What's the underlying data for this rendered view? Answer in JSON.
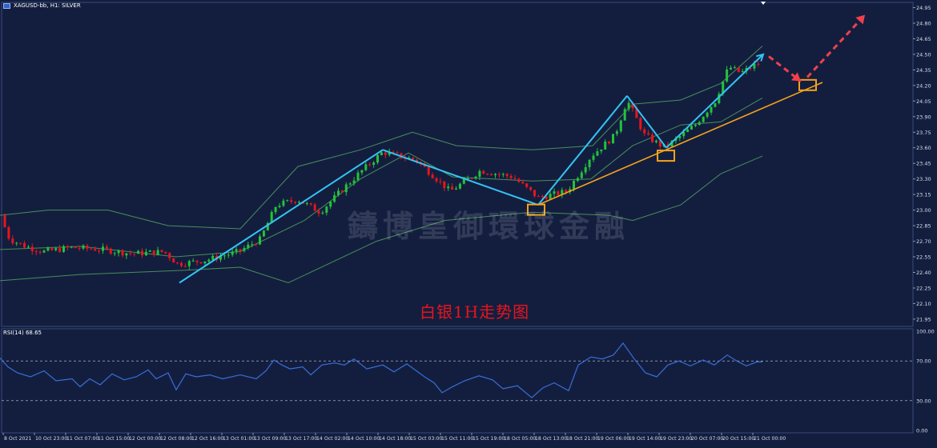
{
  "header": {
    "symbol_label": "XAGUSD-bb, H1: SILVER"
  },
  "rsi": {
    "label": "RSI(14) 68.65",
    "axis_labels": [
      "100.00",
      "70.00",
      "30.00",
      "0.00"
    ]
  },
  "annotation": {
    "title": "白银1H走势图"
  },
  "watermark": {
    "text": "鑄博皇御環球金融"
  },
  "colors": {
    "background": "#131e3f",
    "bull_candle": "#22c33a",
    "bear_candle": "#e8141c",
    "bands": "#4f9a5e",
    "trend_blue": "#33c4f2",
    "support_orange": "#f5a31a",
    "forecast_red": "#f0404a",
    "rsi_line": "#3a6ed6",
    "annotation_red": "#e8141c"
  },
  "chart_data": {
    "type": "candlestick",
    "symbol": "XAGUSD-bb",
    "timeframe": "H1",
    "y_axis_labels": [
      "24.95",
      "24.80",
      "24.65",
      "24.50",
      "24.35",
      "24.20",
      "24.05",
      "23.90",
      "23.75",
      "23.60",
      "23.45",
      "23.30",
      "23.15",
      "23.00",
      "22.85",
      "22.70",
      "22.55",
      "22.40",
      "22.25",
      "22.10",
      "21.95"
    ],
    "ylim": [
      21.88,
      25.0
    ],
    "x_axis_labels": [
      "8 Oct 2021",
      "10 Oct 23:00",
      "11 Oct 07:00",
      "11 Oct 15:00",
      "12 Oct 00:00",
      "12 Oct 08:00",
      "12 Oct 16:00",
      "13 Oct 01:00",
      "13 Oct 09:00",
      "13 Oct 17:00",
      "14 Oct 02:00",
      "14 Oct 10:00",
      "14 Oct 18:00",
      "15 Oct 03:00",
      "15 Oct 11:00",
      "15 Oct 19:00",
      "18 Oct 05:00",
      "18 Oct 13:00",
      "18 Oct 21:00",
      "19 Oct 06:00",
      "19 Oct 14:00",
      "19 Oct 23:00",
      "20 Oct 07:00",
      "20 Oct 15:00",
      "21 Oct 00:00"
    ],
    "price_path": [
      [
        0,
        22.95
      ],
      [
        12,
        22.72
      ],
      [
        32,
        22.65
      ],
      [
        55,
        22.6
      ],
      [
        90,
        22.64
      ],
      [
        128,
        22.62
      ],
      [
        165,
        22.58
      ],
      [
        205,
        22.6
      ],
      [
        222,
        22.48
      ],
      [
        258,
        22.52
      ],
      [
        298,
        22.6
      ],
      [
        325,
        22.72
      ],
      [
        345,
        23.05
      ],
      [
        372,
        23.1
      ],
      [
        400,
        22.98
      ],
      [
        425,
        23.18
      ],
      [
        452,
        23.38
      ],
      [
        478,
        23.56
      ],
      [
        520,
        23.48
      ],
      [
        548,
        23.28
      ],
      [
        562,
        23.18
      ],
      [
        600,
        23.38
      ],
      [
        640,
        23.32
      ],
      [
        672,
        23.12
      ],
      [
        708,
        23.18
      ],
      [
        738,
        23.52
      ],
      [
        768,
        23.72
      ],
      [
        783,
        24.06
      ],
      [
        805,
        23.72
      ],
      [
        830,
        23.6
      ],
      [
        868,
        23.82
      ],
      [
        893,
        24.05
      ],
      [
        910,
        24.38
      ],
      [
        925,
        24.32
      ],
      [
        948,
        24.42
      ]
    ],
    "bollinger": {
      "upper": [
        [
          0,
          22.95
        ],
        [
          60,
          23.0
        ],
        [
          135,
          23.0
        ],
        [
          210,
          22.85
        ],
        [
          300,
          22.82
        ],
        [
          372,
          23.42
        ],
        [
          450,
          23.58
        ],
        [
          515,
          23.75
        ],
        [
          570,
          23.62
        ],
        [
          665,
          23.58
        ],
        [
          740,
          23.62
        ],
        [
          790,
          24.02
        ],
        [
          850,
          24.06
        ],
        [
          900,
          24.22
        ],
        [
          952,
          24.58
        ]
      ],
      "middle": [
        [
          0,
          22.62
        ],
        [
          100,
          22.65
        ],
        [
          220,
          22.55
        ],
        [
          300,
          22.6
        ],
        [
          380,
          22.9
        ],
        [
          450,
          23.3
        ],
        [
          510,
          23.55
        ],
        [
          565,
          23.32
        ],
        [
          665,
          23.28
        ],
        [
          738,
          23.3
        ],
        [
          790,
          23.62
        ],
        [
          850,
          23.82
        ],
        [
          900,
          23.85
        ],
        [
          952,
          24.08
        ]
      ],
      "lower": [
        [
          0,
          22.32
        ],
        [
          100,
          22.38
        ],
        [
          230,
          22.42
        ],
        [
          300,
          22.45
        ],
        [
          360,
          22.3
        ],
        [
          470,
          22.7
        ],
        [
          555,
          22.9
        ],
        [
          665,
          22.98
        ],
        [
          760,
          22.95
        ],
        [
          790,
          22.9
        ],
        [
          850,
          23.05
        ],
        [
          900,
          23.35
        ],
        [
          952,
          23.52
        ]
      ]
    },
    "trendlines_blue": [
      [
        [
          224,
          22.3
        ],
        [
          478,
          23.58
        ]
      ],
      [
        [
          478,
          23.58
        ],
        [
          672,
          23.05
        ]
      ],
      [
        [
          672,
          23.05
        ],
        [
          783,
          24.1
        ]
      ],
      [
        [
          783,
          24.1
        ],
        [
          832,
          23.6
        ]
      ],
      [
        [
          832,
          23.6
        ],
        [
          953,
          24.5
        ]
      ]
    ],
    "support_line": [
      [
        672,
        23.05
      ],
      [
        1027,
        24.23
      ]
    ],
    "support_boxes": [
      [
        669,
        23.0
      ],
      [
        831,
        23.52
      ],
      [
        1008,
        24.2
      ]
    ],
    "forecast_arrows": [
      [
        [
          960,
          24.48
        ],
        [
          1000,
          24.24
        ]
      ],
      [
        [
          1008,
          24.28
        ],
        [
          1080,
          24.88
        ]
      ]
    ],
    "rsi": {
      "ylim": [
        0,
        100
      ],
      "levels": [
        70,
        30
      ],
      "value_label": "68.65",
      "points": [
        [
          0,
          73
        ],
        [
          10,
          64
        ],
        [
          22,
          58
        ],
        [
          38,
          54
        ],
        [
          55,
          60
        ],
        [
          70,
          50
        ],
        [
          90,
          52
        ],
        [
          100,
          44
        ],
        [
          112,
          52
        ],
        [
          125,
          46
        ],
        [
          140,
          57
        ],
        [
          155,
          51
        ],
        [
          170,
          54
        ],
        [
          185,
          61
        ],
        [
          195,
          52
        ],
        [
          210,
          58
        ],
        [
          220,
          41
        ],
        [
          232,
          57
        ],
        [
          245,
          54
        ],
        [
          262,
          56
        ],
        [
          278,
          52
        ],
        [
          300,
          56
        ],
        [
          320,
          52
        ],
        [
          332,
          60
        ],
        [
          342,
          71
        ],
        [
          352,
          66
        ],
        [
          362,
          62
        ],
        [
          378,
          64
        ],
        [
          388,
          56
        ],
        [
          402,
          66
        ],
        [
          418,
          68
        ],
        [
          430,
          66
        ],
        [
          442,
          72
        ],
        [
          458,
          62
        ],
        [
          478,
          66
        ],
        [
          492,
          59
        ],
        [
          508,
          67
        ],
        [
          520,
          60
        ],
        [
          532,
          53
        ],
        [
          542,
          48
        ],
        [
          552,
          38
        ],
        [
          565,
          44
        ],
        [
          580,
          50
        ],
        [
          598,
          55
        ],
        [
          615,
          51
        ],
        [
          628,
          42
        ],
        [
          646,
          45
        ],
        [
          664,
          33
        ],
        [
          678,
          43
        ],
        [
          692,
          48
        ],
        [
          710,
          40
        ],
        [
          722,
          66
        ],
        [
          738,
          74
        ],
        [
          752,
          72
        ],
        [
          766,
          76
        ],
        [
          778,
          88
        ],
        [
          792,
          72
        ],
        [
          806,
          58
        ],
        [
          820,
          54
        ],
        [
          834,
          66
        ],
        [
          848,
          70
        ],
        [
          862,
          65
        ],
        [
          878,
          71
        ],
        [
          892,
          66
        ],
        [
          908,
          76
        ],
        [
          920,
          70
        ],
        [
          932,
          65
        ],
        [
          945,
          69
        ],
        [
          952,
          69
        ]
      ]
    }
  }
}
